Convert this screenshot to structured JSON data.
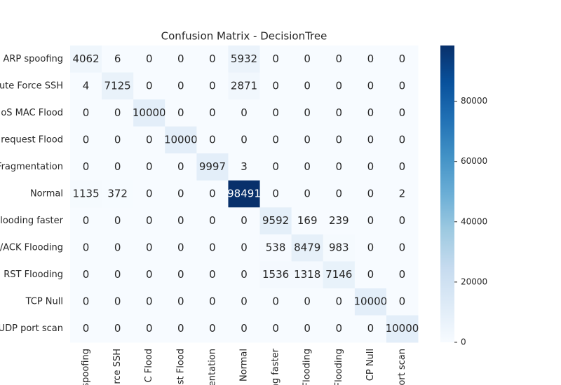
{
  "chart_data": {
    "type": "heatmap",
    "title": "Confusion Matrix - DecisionTree",
    "y_categories": [
      "ARP spoofing",
      "ute Force SSH",
      "oS MAC Flood",
      "o request Flood",
      "Fragmentation",
      "Normal",
      "Flooding faster",
      "/ACK Flooding",
      "l RST Flooding",
      "TCP Null",
      "UDP port scan"
    ],
    "x_categories": [
      "spoofing",
      "rce SSH",
      "C Flood",
      "st Flood",
      "entation",
      "Normal",
      "ng faster",
      "Flooding",
      "Flooding",
      "CP Null",
      "ort scan"
    ],
    "matrix": [
      [
        4062,
        6,
        0,
        0,
        0,
        5932,
        0,
        0,
        0,
        0,
        0
      ],
      [
        4,
        7125,
        0,
        0,
        0,
        2871,
        0,
        0,
        0,
        0,
        0
      ],
      [
        0,
        0,
        10000,
        0,
        0,
        0,
        0,
        0,
        0,
        0,
        0
      ],
      [
        0,
        0,
        0,
        10000,
        0,
        0,
        0,
        0,
        0,
        0,
        0
      ],
      [
        0,
        0,
        0,
        0,
        9997,
        3,
        0,
        0,
        0,
        0,
        0
      ],
      [
        1135,
        372,
        0,
        0,
        0,
        98491,
        0,
        0,
        0,
        0,
        2
      ],
      [
        0,
        0,
        0,
        0,
        0,
        0,
        9592,
        169,
        239,
        0,
        0
      ],
      [
        0,
        0,
        0,
        0,
        0,
        0,
        538,
        8479,
        983,
        0,
        0
      ],
      [
        0,
        0,
        0,
        0,
        0,
        0,
        1536,
        1318,
        7146,
        0,
        0
      ],
      [
        0,
        0,
        0,
        0,
        0,
        0,
        0,
        0,
        0,
        10000,
        0
      ],
      [
        0,
        0,
        0,
        0,
        0,
        0,
        0,
        0,
        0,
        0,
        10000
      ]
    ],
    "cmap": "Blues",
    "clim": [
      0,
      98491
    ],
    "cticks": [
      0,
      20000,
      40000,
      60000,
      80000
    ]
  }
}
